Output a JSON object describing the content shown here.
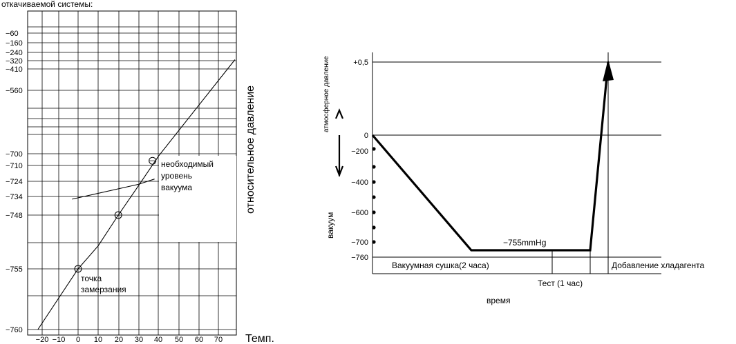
{
  "header_fragment": "откачиваемой системы:",
  "chart_data": [
    {
      "type": "line",
      "x_ticks": [
        "-20",
        "-10",
        "0",
        "10",
        "20",
        "30",
        "40",
        "50",
        "60",
        "70"
      ],
      "y_ticks": [
        "-60",
        "-160",
        "-240",
        "-320",
        "-410",
        "-560",
        "-700",
        "-710",
        "-724",
        "-734",
        "-748",
        "-755",
        "-760"
      ],
      "xlabel": "Темп.",
      "ylabel": "относительное давление",
      "annotations": {
        "required": [
          "необходимый",
          "уровень",
          "вакуума"
        ],
        "freezing": [
          "точка",
          "замерзания"
        ]
      },
      "series": [
        {
          "values": [
            [
              -20,
              -760
            ],
            [
              0,
              -755
            ],
            [
              10,
              -752
            ],
            [
              20,
              -748
            ],
            [
              30,
              -727
            ],
            [
              40,
              -702
            ],
            [
              78,
              -310
            ]
          ]
        },
        {
          "values": [
            [
              -3,
              -736
            ],
            [
              30,
              -726
            ],
            [
              38,
              -722
            ]
          ]
        }
      ],
      "markers": [
        [
          0,
          -755
        ],
        [
          20,
          -748
        ],
        [
          37,
          -706
        ]
      ]
    },
    {
      "type": "line",
      "y_ticks": [
        "+0,5",
        "0",
        "-200",
        "-400",
        "-600",
        "-700",
        "-760"
      ],
      "ylabel_top": "атмосферное давление",
      "ylabel_bottom": "вакуум",
      "xlabel": "время",
      "level_label": "−755mmHg",
      "phases": {
        "drying": "Вакуумная сушка(2 часа)",
        "test": "Тест (1 час)",
        "refrigerant": "Добавление хладагента"
      },
      "series": [
        {
          "values": [
            [
              0,
              0
            ],
            [
              2,
              -755
            ],
            [
              3,
              -755
            ],
            [
              3.2,
              0.5
            ]
          ]
        }
      ]
    }
  ]
}
